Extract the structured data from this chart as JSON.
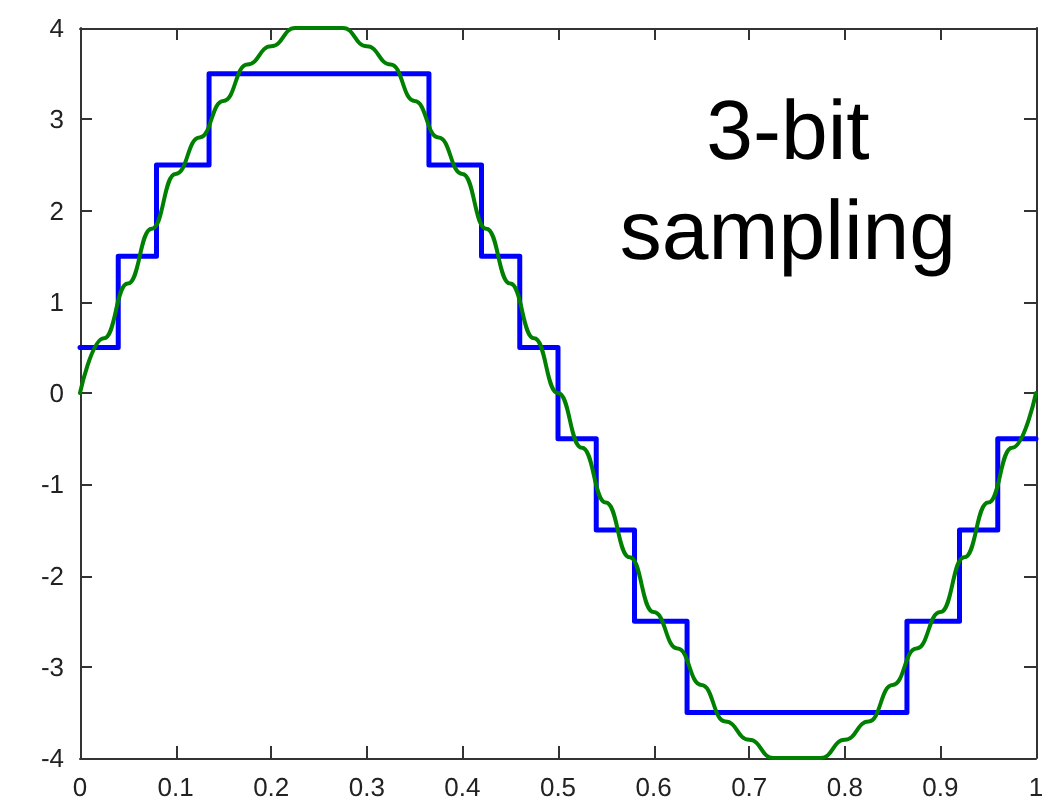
{
  "chart_data": {
    "type": "line",
    "xlim": [
      0,
      1
    ],
    "xticks": [
      0,
      0.1,
      0.2,
      0.3,
      0.4,
      0.5,
      0.6,
      0.7,
      0.8,
      0.9,
      1
    ],
    "ylim": [
      -4,
      4
    ],
    "yticks": [
      -4,
      -3,
      -2,
      -1,
      0,
      1,
      2,
      3,
      4
    ],
    "grid": false,
    "marker": "none",
    "annotations": [
      "3-bit\nsampling"
    ],
    "series": [
      {
        "type": "step",
        "color": "#0000ff",
        "x": [
          0,
          0.04,
          0.08,
          0.135,
          0.365,
          0.42,
          0.46,
          0.5,
          0.54,
          0.58,
          0.635,
          0.865,
          0.92,
          0.96,
          1
        ],
        "values": [
          0.5,
          1.5,
          2.5,
          3.5,
          2.5,
          1.5,
          0.5,
          -0.5,
          -1.5,
          -2.5,
          -3.5,
          -2.5,
          -1.5,
          -0.5,
          -0.5
        ]
      },
      {
        "color": "#008000",
        "x": [
          0,
          0.025,
          0.05,
          0.075,
          0.1,
          0.125,
          0.15,
          0.175,
          0.2,
          0.225,
          0.25,
          0.275,
          0.3,
          0.325,
          0.35,
          0.375,
          0.4,
          0.425,
          0.45,
          0.475,
          0.5,
          0.525,
          0.55,
          0.575,
          0.6,
          0.625,
          0.65,
          0.675,
          0.7,
          0.725,
          0.75,
          0.775,
          0.8,
          0.825,
          0.85,
          0.875,
          0.9,
          0.925,
          0.95,
          0.975,
          1
        ],
        "values": [
          0,
          0.6,
          1.2,
          1.8,
          2.4,
          2.8,
          3.2,
          3.6,
          3.8,
          4.0,
          4.0,
          4.0,
          3.8,
          3.6,
          3.2,
          2.8,
          2.4,
          1.8,
          1.2,
          0.6,
          0,
          -0.6,
          -1.2,
          -1.8,
          -2.4,
          -2.8,
          -3.2,
          -3.6,
          -3.8,
          -4.0,
          -4.0,
          -4.0,
          -3.8,
          -3.6,
          -3.2,
          -2.8,
          -2.4,
          -1.8,
          -1.2,
          -0.6,
          0
        ]
      }
    ]
  }
}
